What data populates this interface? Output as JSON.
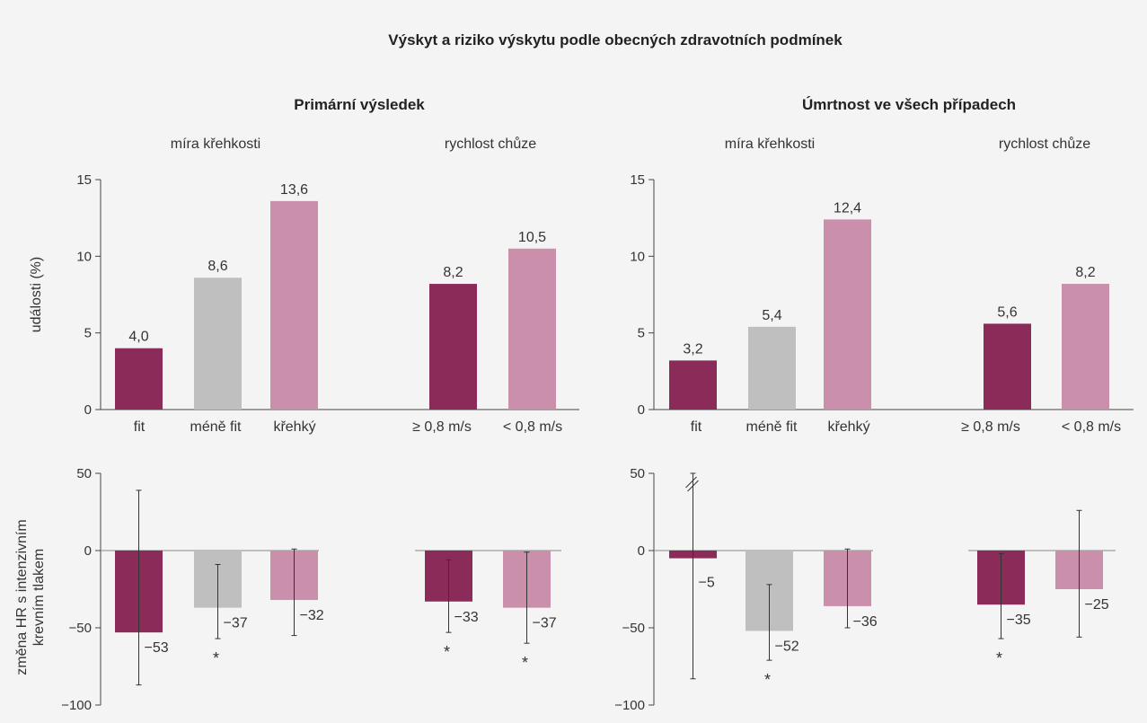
{
  "title": "Výskyt a riziko výskytu podle obecných zdravotních podmínek",
  "colors": {
    "fit": "#8b2b5a",
    "less_fit": "#bfbfbf",
    "frail": "#c98fab",
    "axis": "#444444",
    "text": "#333333",
    "background": "#f4f4f4"
  },
  "panels": [
    {
      "heading": "Primární výsledek",
      "group_labels": [
        "míra křehkosti",
        "rychlost chůze"
      ],
      "top_ylabel": "události (%)",
      "bottom_ylabel_line1": "změna HR s intenzivním",
      "bottom_ylabel_line2": "krevním tlakem"
    },
    {
      "heading": "Úmrtnost ve všech případech",
      "group_labels": [
        "míra křehkosti",
        "rychlost chůze"
      ],
      "top_ylabel": "",
      "bottom_ylabel_line1": "",
      "bottom_ylabel_line2": ""
    }
  ],
  "chart_data": [
    {
      "type": "bar",
      "title": "Primární výsledek",
      "ylabel": "události (%)",
      "ylim": [
        0,
        15
      ],
      "yticks": [
        0,
        5,
        10,
        15
      ],
      "categories": [
        "fit",
        "méně fit",
        "křehký",
        "≥ 0,8 m/s",
        "< 0,8 m/s"
      ],
      "values": [
        4.0,
        8.6,
        13.6,
        8.2,
        10.5
      ],
      "value_labels": [
        "4,0",
        "8,6",
        "13,6",
        "8,2",
        "10,5"
      ],
      "bar_colors": [
        "fit",
        "less_fit",
        "frail",
        "fit",
        "frail"
      ]
    },
    {
      "type": "bar",
      "title": "Úmrtnost ve všech případech",
      "ylabel": "",
      "ylim": [
        0,
        15
      ],
      "yticks": [
        0,
        5,
        10,
        15
      ],
      "categories": [
        "fit",
        "méně fit",
        "křehký",
        "≥ 0,8 m/s",
        "< 0,8 m/s"
      ],
      "values": [
        3.2,
        5.4,
        12.4,
        5.6,
        8.2
      ],
      "value_labels": [
        "3,2",
        "5,4",
        "12,4",
        "5,6",
        "8,2"
      ],
      "bar_colors": [
        "fit",
        "less_fit",
        "frail",
        "fit",
        "frail"
      ]
    },
    {
      "type": "bar",
      "title": "Primární výsledek",
      "ylabel": "změna HR s intenzivním krevním tlakem",
      "ylim": [
        -100,
        50
      ],
      "yticks": [
        -100,
        -50,
        0,
        50
      ],
      "tick_labels": [
        "−100",
        "−50",
        "0",
        "50"
      ],
      "categories": [
        "fit",
        "méně fit",
        "křehký",
        "≥ 0,8 m/s",
        "< 0,8 m/s"
      ],
      "values": [
        -53,
        -37,
        -32,
        -33,
        -37
      ],
      "value_labels": [
        "−53",
        "−37",
        "−32",
        "−33",
        "−37"
      ],
      "ci_low": [
        -87,
        -57,
        -55,
        -53,
        -60
      ],
      "ci_high": [
        39,
        -9,
        1,
        -6,
        -1
      ],
      "significance": [
        "",
        "*",
        "",
        "*",
        "*"
      ],
      "bar_colors": [
        "fit",
        "less_fit",
        "frail",
        "fit",
        "frail"
      ]
    },
    {
      "type": "bar",
      "title": "Úmrtnost ve všech případech",
      "ylabel": "",
      "ylim": [
        -100,
        50
      ],
      "yticks": [
        -100,
        -50,
        0,
        50
      ],
      "tick_labels": [
        "−100",
        "−50",
        "0",
        "50"
      ],
      "categories": [
        "fit",
        "méně fit",
        "křehký",
        "≥ 0,8 m/s",
        "< 0,8 m/s"
      ],
      "values": [
        -5,
        -52,
        -36,
        -35,
        -25
      ],
      "value_labels": [
        "−5",
        "−52",
        "−36",
        "−35",
        "−25"
      ],
      "ci_low": [
        -83,
        -71,
        -50,
        -57,
        -56
      ],
      "ci_high": [
        50,
        -22,
        1,
        -2,
        26
      ],
      "ci_high_truncated": [
        true,
        false,
        false,
        false,
        false
      ],
      "significance": [
        "",
        "*",
        "",
        "*",
        ""
      ],
      "bar_colors": [
        "fit",
        "less_fit",
        "frail",
        "fit",
        "frail"
      ]
    }
  ]
}
